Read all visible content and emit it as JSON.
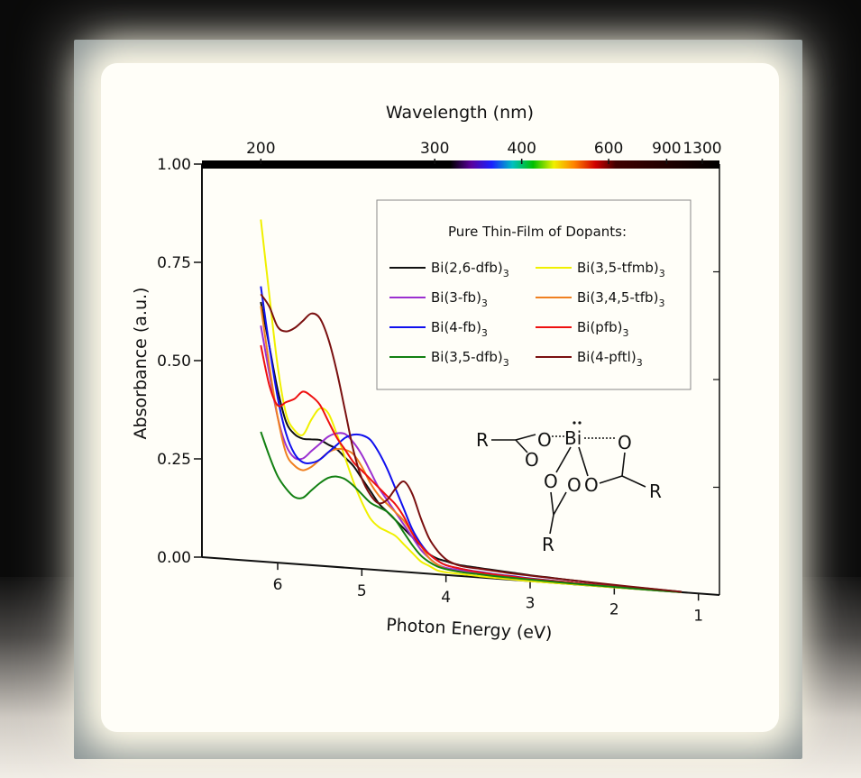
{
  "chart_data": {
    "type": "line",
    "xlabel": "Photon Energy (eV)",
    "ylabel": "Absorbance (a.u.)",
    "top_xlabel": "Wavelength (nm)",
    "xlim": [
      6.9,
      0.75
    ],
    "ylim": [
      0,
      1.0
    ],
    "x_ticks": [
      "6",
      "5",
      "4",
      "3",
      "2",
      "1"
    ],
    "y_ticks": [
      "0.00",
      "0.25",
      "0.50",
      "0.75",
      "1.00"
    ],
    "top_ticks": [
      "200",
      "300",
      "400",
      "600",
      "900",
      "1300"
    ],
    "legend_title": "Pure Thin-Film of Dopants:",
    "grid": false,
    "series": [
      {
        "name": "Bi(2,6-dfb)",
        "sub": "3",
        "color": "#111111",
        "x": [
          6.2,
          6.1,
          6.0,
          5.9,
          5.8,
          5.7,
          5.6,
          5.5,
          5.4,
          5.3,
          5.2,
          5.1,
          5.0,
          4.9,
          4.8,
          4.7,
          4.6,
          4.5,
          4.4,
          4.3,
          4.2,
          4.1,
          4.0,
          3.9,
          3.8,
          3.6,
          3.4,
          3.2,
          3.0,
          2.8,
          2.6,
          2.4,
          2.2,
          2.0,
          1.8,
          1.6,
          1.4,
          1.2
        ],
        "y": [
          0.66,
          0.55,
          0.44,
          0.36,
          0.33,
          0.32,
          0.32,
          0.32,
          0.31,
          0.3,
          0.28,
          0.26,
          0.23,
          0.2,
          0.17,
          0.15,
          0.13,
          0.11,
          0.09,
          0.07,
          0.05,
          0.04,
          0.035,
          0.03,
          0.027,
          0.024,
          0.021,
          0.018,
          0.015,
          0.013,
          0.011,
          0.009,
          0.007,
          0.005,
          0.004,
          0.003,
          0.002,
          0.001
        ]
      },
      {
        "name": "Bi(3,5-tfmb)",
        "sub": "3",
        "color": "#f0f000",
        "x": [
          6.2,
          6.1,
          6.0,
          5.9,
          5.8,
          5.7,
          5.6,
          5.5,
          5.4,
          5.3,
          5.2,
          5.1,
          5.0,
          4.9,
          4.8,
          4.7,
          4.6,
          4.5,
          4.4,
          4.3,
          4.2,
          4.1,
          4.0,
          3.8,
          3.6,
          3.4,
          3.2,
          3.0,
          2.5,
          2.0,
          1.5,
          1.2
        ],
        "y": [
          0.87,
          0.68,
          0.5,
          0.38,
          0.34,
          0.33,
          0.37,
          0.4,
          0.39,
          0.34,
          0.28,
          0.22,
          0.17,
          0.13,
          0.11,
          0.1,
          0.09,
          0.07,
          0.05,
          0.03,
          0.02,
          0.01,
          0.007,
          0.005,
          0.003,
          0.002,
          0.001,
          0.0,
          0.0,
          0.0,
          0.0,
          0.0
        ]
      },
      {
        "name": "Bi(3-fb)",
        "sub": "3",
        "color": "#9b30d0",
        "x": [
          6.2,
          6.1,
          6.0,
          5.9,
          5.8,
          5.7,
          5.6,
          5.5,
          5.4,
          5.3,
          5.2,
          5.1,
          5.0,
          4.9,
          4.8,
          4.7,
          4.6,
          4.5,
          4.4,
          4.3,
          4.2,
          4.1,
          4.0,
          3.8,
          3.6,
          3.4,
          3.2,
          3.0,
          2.5,
          2.0,
          1.5,
          1.2
        ],
        "y": [
          0.6,
          0.48,
          0.37,
          0.3,
          0.27,
          0.27,
          0.29,
          0.31,
          0.33,
          0.34,
          0.34,
          0.32,
          0.29,
          0.25,
          0.21,
          0.18,
          0.15,
          0.12,
          0.09,
          0.06,
          0.04,
          0.025,
          0.018,
          0.014,
          0.011,
          0.009,
          0.007,
          0.006,
          0.004,
          0.002,
          0.001,
          0.0
        ]
      },
      {
        "name": "Bi(3,4,5-tfb)",
        "sub": "3",
        "color": "#f08020",
        "x": [
          6.2,
          6.1,
          6.0,
          5.9,
          5.8,
          5.7,
          5.6,
          5.5,
          5.4,
          5.3,
          5.2,
          5.1,
          5.0,
          4.9,
          4.8,
          4.7,
          4.6,
          4.5,
          4.4,
          4.3,
          4.2,
          4.1,
          4.0,
          3.8,
          3.6,
          3.4,
          3.2,
          3.0,
          2.5,
          2.0,
          1.5,
          1.2
        ],
        "y": [
          0.65,
          0.5,
          0.37,
          0.28,
          0.25,
          0.24,
          0.25,
          0.27,
          0.29,
          0.3,
          0.3,
          0.29,
          0.26,
          0.22,
          0.19,
          0.17,
          0.15,
          0.13,
          0.1,
          0.07,
          0.04,
          0.025,
          0.015,
          0.01,
          0.008,
          0.006,
          0.005,
          0.004,
          0.003,
          0.002,
          0.001,
          0.0
        ]
      },
      {
        "name": "Bi(4-fb)",
        "sub": "3",
        "color": "#1010ee",
        "x": [
          6.2,
          6.1,
          6.0,
          5.9,
          5.8,
          5.7,
          5.6,
          5.5,
          5.4,
          5.3,
          5.2,
          5.1,
          5.0,
          4.9,
          4.8,
          4.7,
          4.6,
          4.5,
          4.4,
          4.3,
          4.2,
          4.1,
          4.0,
          3.8,
          3.6,
          3.4,
          3.2,
          3.0,
          2.5,
          2.0,
          1.5,
          1.2
        ],
        "y": [
          0.7,
          0.55,
          0.42,
          0.33,
          0.28,
          0.26,
          0.26,
          0.27,
          0.29,
          0.31,
          0.33,
          0.34,
          0.34,
          0.33,
          0.3,
          0.26,
          0.21,
          0.16,
          0.11,
          0.075,
          0.05,
          0.035,
          0.025,
          0.018,
          0.014,
          0.011,
          0.009,
          0.007,
          0.004,
          0.002,
          0.001,
          0.0
        ]
      },
      {
        "name": "Bi(pfb)",
        "sub": "3",
        "color": "#ee1010",
        "x": [
          6.2,
          6.1,
          6.0,
          5.9,
          5.8,
          5.7,
          5.6,
          5.5,
          5.4,
          5.3,
          5.2,
          5.1,
          5.0,
          4.9,
          4.8,
          4.7,
          4.6,
          4.5,
          4.4,
          4.3,
          4.2,
          4.1,
          4.0,
          3.8,
          3.6,
          3.4,
          3.2,
          3.0,
          2.5,
          2.0,
          1.5,
          1.2
        ],
        "y": [
          0.55,
          0.45,
          0.4,
          0.41,
          0.42,
          0.44,
          0.43,
          0.41,
          0.37,
          0.33,
          0.3,
          0.27,
          0.25,
          0.23,
          0.21,
          0.19,
          0.17,
          0.14,
          0.1,
          0.07,
          0.05,
          0.035,
          0.025,
          0.018,
          0.013,
          0.01,
          0.008,
          0.006,
          0.004,
          0.002,
          0.001,
          0.0
        ]
      },
      {
        "name": "Bi(3,5-dfb)",
        "sub": "3",
        "color": "#128012",
        "x": [
          6.2,
          6.1,
          6.0,
          5.9,
          5.8,
          5.7,
          5.6,
          5.5,
          5.4,
          5.3,
          5.2,
          5.1,
          5.0,
          4.9,
          4.8,
          4.7,
          4.6,
          4.5,
          4.4,
          4.3,
          4.2,
          4.1,
          4.0,
          3.8,
          3.6,
          3.4,
          3.2,
          3.0,
          2.5,
          2.0,
          1.5,
          1.2
        ],
        "y": [
          0.33,
          0.27,
          0.22,
          0.19,
          0.17,
          0.17,
          0.19,
          0.21,
          0.225,
          0.23,
          0.225,
          0.21,
          0.19,
          0.17,
          0.16,
          0.15,
          0.13,
          0.1,
          0.07,
          0.045,
          0.03,
          0.02,
          0.015,
          0.01,
          0.008,
          0.006,
          0.005,
          0.004,
          0.002,
          0.001,
          0.0,
          0.0
        ]
      },
      {
        "name": "Bi(4-pftl)",
        "sub": "3",
        "color": "#7a1010",
        "x": [
          6.2,
          6.1,
          6.0,
          5.9,
          5.8,
          5.7,
          5.6,
          5.5,
          5.4,
          5.3,
          5.2,
          5.1,
          5.0,
          4.9,
          4.8,
          4.7,
          4.6,
          4.5,
          4.4,
          4.3,
          4.2,
          4.1,
          4.0,
          3.9,
          3.8,
          3.6,
          3.4,
          3.2,
          3.0,
          2.5,
          2.0,
          1.5,
          1.2
        ],
        "y": [
          0.68,
          0.65,
          0.6,
          0.59,
          0.6,
          0.62,
          0.64,
          0.63,
          0.58,
          0.5,
          0.4,
          0.3,
          0.23,
          0.19,
          0.17,
          0.18,
          0.21,
          0.23,
          0.2,
          0.14,
          0.09,
          0.06,
          0.04,
          0.03,
          0.025,
          0.022,
          0.019,
          0.016,
          0.014,
          0.01,
          0.006,
          0.003,
          0.001
        ]
      }
    ]
  },
  "molecule": {
    "bi": "Bi",
    "o": "O",
    "r": "R"
  }
}
